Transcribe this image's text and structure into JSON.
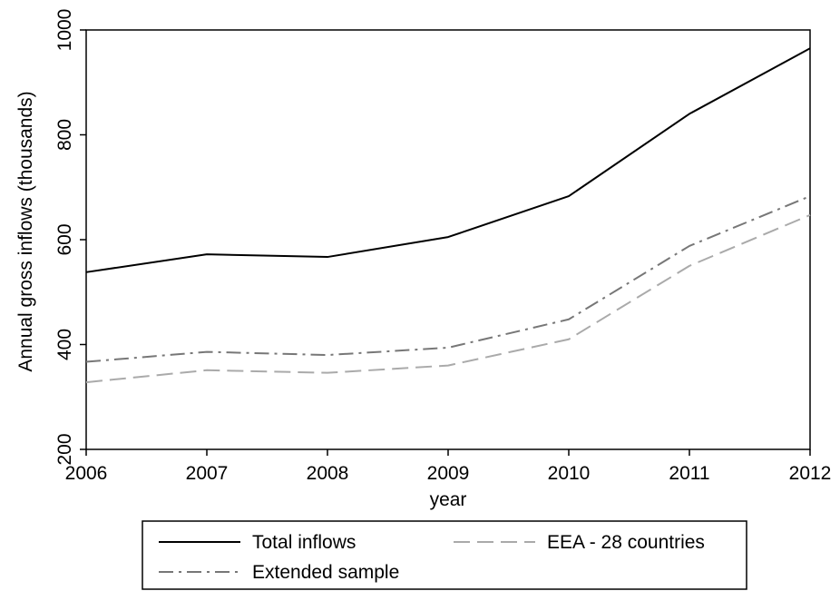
{
  "chart_data": {
    "type": "line",
    "title": "",
    "xlabel": "year",
    "ylabel": "Annual gross inflows (thousands)",
    "x": [
      2006,
      2007,
      2008,
      2009,
      2010,
      2011,
      2012
    ],
    "xlim": [
      2006,
      2012
    ],
    "ylim": [
      200,
      1000
    ],
    "yticks": [
      200,
      400,
      600,
      800,
      1000
    ],
    "grid": false,
    "legend_position": "bottom",
    "series": [
      {
        "name": "Total inflows",
        "values": [
          538,
          572,
          567,
          605,
          683,
          840,
          965
        ],
        "color": "#000000",
        "style": "solid"
      },
      {
        "name": "EEA - 28 countries",
        "values": [
          328,
          351,
          346,
          360,
          410,
          550,
          647
        ],
        "color": "#aaaaaa",
        "style": "dashed"
      },
      {
        "name": "Extended sample",
        "values": [
          367,
          386,
          380,
          394,
          448,
          588,
          683
        ],
        "color": "#777777",
        "style": "dashdot"
      }
    ]
  }
}
